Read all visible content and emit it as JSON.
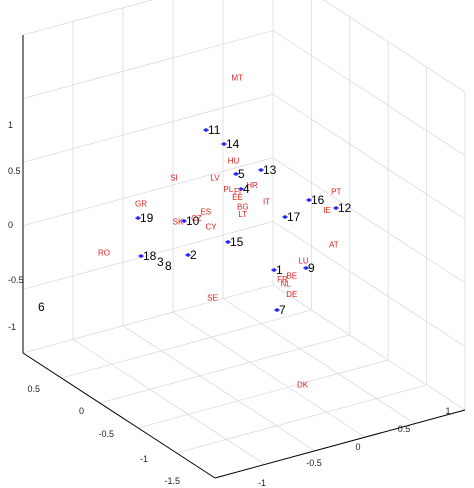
{
  "chart_data": {
    "type": "scatter",
    "projection": "3d",
    "grid": true,
    "z_ticks": [
      "1",
      "0.5",
      "0",
      "-0.5",
      "-1"
    ],
    "left_floor_ticks": [
      "0.5",
      "0",
      "-0.5",
      "-1",
      "-1.5"
    ],
    "right_floor_ticks": [
      "-1",
      "-0.5",
      "0",
      "0.5",
      "1"
    ],
    "colors": {
      "country": "#e02020",
      "number": "#000000",
      "marker": "#1a1aff"
    },
    "country_labels": [
      {
        "text": "MT",
        "x": 1.05,
        "y": 1.4,
        "z": 0.62
      },
      {
        "text": "HU",
        "x": 0.1,
        "y": 0.2,
        "z": 0.55
      },
      {
        "text": "HR",
        "x": 0.2,
        "y": 0.1,
        "z": 0.35
      },
      {
        "text": "LV",
        "x": 0.0,
        "y": 0.3,
        "z": 0.35
      },
      {
        "text": "PL",
        "x": 0.05,
        "y": 0.2,
        "z": 0.28
      },
      {
        "text": "FI",
        "x": 0.1,
        "y": 0.15,
        "z": 0.28
      },
      {
        "text": "EE",
        "x": 0.1,
        "y": 0.15,
        "z": 0.22
      },
      {
        "text": "IT",
        "x": 0.3,
        "y": 0.05,
        "z": 0.2
      },
      {
        "text": "SI",
        "x": -0.2,
        "y": 0.55,
        "z": 0.25
      },
      {
        "text": "BG",
        "x": 0.15,
        "y": 0.15,
        "z": 0.12
      },
      {
        "text": "LT",
        "x": 0.15,
        "y": 0.15,
        "z": 0.05
      },
      {
        "text": "GR",
        "x": -0.4,
        "y": 0.7,
        "z": -0.05
      },
      {
        "text": "ES",
        "x": -0.05,
        "y": 0.35,
        "z": 0.0
      },
      {
        "text": "CZ",
        "x": -0.1,
        "y": 0.4,
        "z": -0.08
      },
      {
        "text": "SK",
        "x": -0.2,
        "y": 0.5,
        "z": -0.15
      },
      {
        "text": "CY",
        "x": 0.0,
        "y": 0.35,
        "z": -0.15
      },
      {
        "text": "PT",
        "x": 0.85,
        "y": -0.1,
        "z": 0.3
      },
      {
        "text": "IE",
        "x": 0.8,
        "y": -0.05,
        "z": 0.1
      },
      {
        "text": "AT",
        "x": 0.75,
        "y": -0.2,
        "z": -0.15
      },
      {
        "text": "LU",
        "x": 0.5,
        "y": -0.15,
        "z": -0.3
      },
      {
        "text": "BE",
        "x": 0.35,
        "y": -0.2,
        "z": -0.4
      },
      {
        "text": "FR",
        "x": 0.3,
        "y": -0.15,
        "z": -0.45
      },
      {
        "text": "NL",
        "x": 0.33,
        "y": -0.15,
        "z": -0.5
      },
      {
        "text": "DE",
        "x": 0.35,
        "y": -0.2,
        "z": -0.58
      },
      {
        "text": "RO",
        "x": -0.6,
        "y": 0.9,
        "z": -0.6
      },
      {
        "text": "SE",
        "x": -0.1,
        "y": 0.2,
        "z": -0.75
      },
      {
        "text": "DK",
        "x": 0.3,
        "y": -0.4,
        "z": -1.35
      }
    ],
    "number_labels": [
      {
        "text": "11",
        "marker": true
      },
      {
        "text": "14",
        "marker": true
      },
      {
        "text": "13",
        "marker": true
      },
      {
        "text": "5",
        "marker": true
      },
      {
        "text": "4",
        "marker": true
      },
      {
        "text": "16",
        "marker": true
      },
      {
        "text": "12",
        "marker": true
      },
      {
        "text": "17",
        "marker": true
      },
      {
        "text": "19",
        "marker": true
      },
      {
        "text": "10",
        "marker": true
      },
      {
        "text": "15",
        "marker": true
      },
      {
        "text": "18",
        "marker": true
      },
      {
        "text": "3",
        "marker": false
      },
      {
        "text": "8",
        "marker": false
      },
      {
        "text": "2",
        "marker": true
      },
      {
        "text": "1",
        "marker": true
      },
      {
        "text": "9",
        "marker": true
      },
      {
        "text": "7",
        "marker": true
      },
      {
        "text": "6",
        "marker": false
      }
    ]
  }
}
